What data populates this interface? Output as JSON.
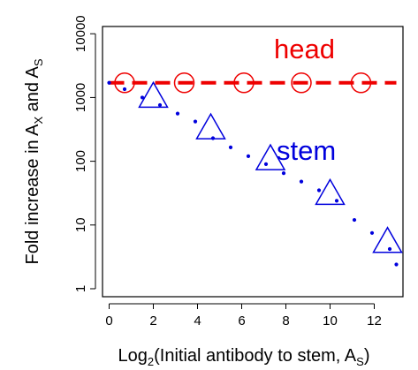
{
  "chart_data": {
    "type": "scatter",
    "x_axis": {
      "label_prefix": "Log",
      "label_sub_base": "2",
      "label_main": "(Initial antibody to stem, A",
      "label_sub_var": "S",
      "label_suffix": ")",
      "range": [
        -0.3,
        13.3
      ],
      "ticks": [
        0,
        2,
        4,
        6,
        8,
        10,
        12
      ],
      "tick_labels": [
        "0",
        "2",
        "4",
        "6",
        "8",
        "10",
        "12"
      ]
    },
    "y_axis": {
      "label_main": "Fold increase in A",
      "label_sub_x": "X",
      "label_and": " and A",
      "label_sub_s": "S",
      "scale": "log10",
      "range": [
        0.75,
        13000
      ],
      "ticks": [
        1,
        10,
        100,
        1000,
        10000
      ],
      "tick_labels": [
        "1",
        "10",
        "100",
        "1000",
        "10000"
      ]
    },
    "grid": false,
    "series": [
      {
        "name": "head",
        "color": "#ee0000",
        "line_style": "dashed",
        "marker": "circle",
        "line": {
          "x": [
            0,
            13
          ],
          "y": [
            1700,
            1700
          ]
        },
        "markers": {
          "x": [
            0.7,
            3.4,
            6.1,
            8.7,
            11.4
          ],
          "y": [
            1700,
            1700,
            1700,
            1700,
            1700
          ]
        }
      },
      {
        "name": "stem",
        "color": "#0000dd",
        "line_style": "dotted",
        "marker": "triangle",
        "dots": {
          "x": [
            0,
            0.7,
            1.5,
            2.3,
            3.1,
            3.9,
            4.7,
            5.5,
            6.3,
            7.1,
            7.9,
            8.7,
            9.5,
            10.3,
            11.1,
            11.9,
            12.7,
            13
          ],
          "y": [
            1700,
            1350,
            1000,
            760,
            560,
            420,
            230,
            165,
            120,
            90,
            65,
            48,
            35,
            24,
            12,
            7.5,
            4.2,
            2.4
          ]
        },
        "markers": {
          "x": [
            2,
            4.6,
            7.3,
            10,
            12.6
          ],
          "y": [
            1000,
            320,
            105,
            30,
            5.3
          ]
        }
      }
    ]
  }
}
